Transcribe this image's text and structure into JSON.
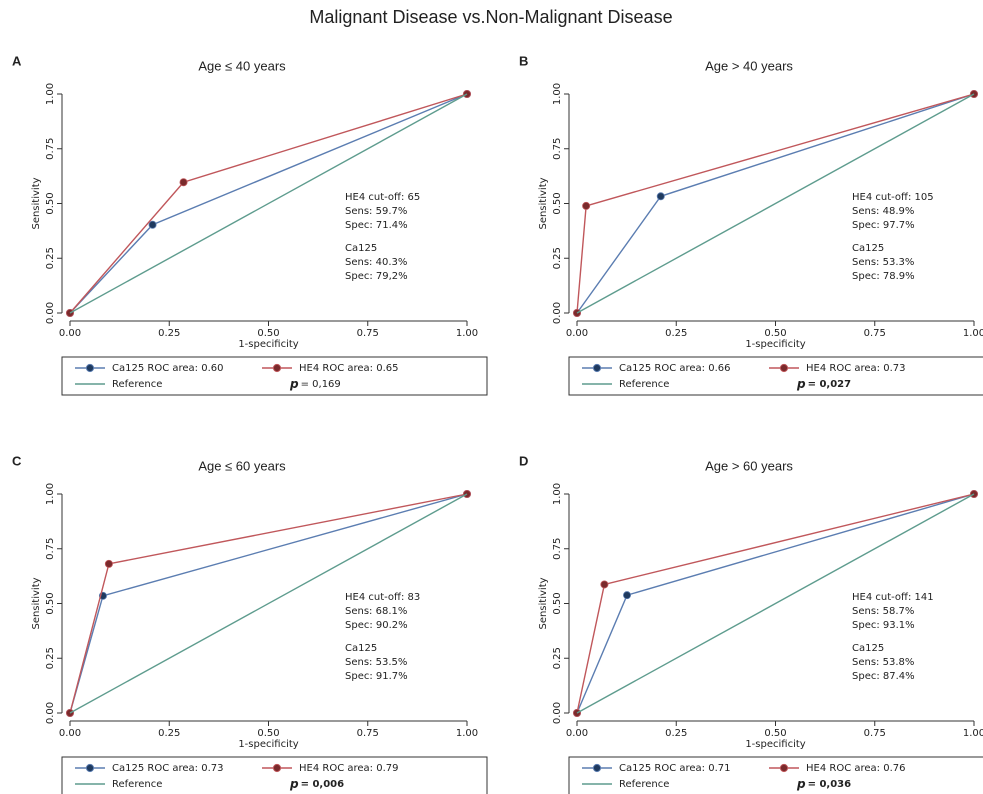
{
  "title": "Malignant Disease vs.Non-Malignant Disease",
  "chart_data": [
    {
      "type": "line",
      "panel": "A",
      "title": "Age ≤ 40 years",
      "xlabel": "1-specificity",
      "ylabel": "Sensitivity",
      "xlim": [
        0,
        1
      ],
      "ylim": [
        0,
        1
      ],
      "xticks": [
        {
          "value": 0,
          "label": "0.00"
        },
        {
          "value": 0.25,
          "label": "0.25"
        },
        {
          "value": 0.5,
          "label": "0.50"
        },
        {
          "value": 0.75,
          "label": "0.75"
        },
        {
          "value": 1,
          "label": "1.00"
        }
      ],
      "yticks": [
        {
          "value": 0,
          "label": "0.00"
        },
        {
          "value": 0.25,
          "label": "0.25"
        },
        {
          "value": 0.5,
          "label": "0.50"
        },
        {
          "value": 0.75,
          "label": "0.75"
        },
        {
          "value": 1,
          "label": "1.00"
        }
      ],
      "series": [
        {
          "name": "Ca125 ROC area: 0.60",
          "color": "#5b7db1",
          "marker_color": "#1f3a5f",
          "x": [
            0,
            0.208,
            1
          ],
          "values": [
            0,
            0.403,
            1
          ]
        },
        {
          "name": "HE4 ROC area: 0.65",
          "color": "#c0575b",
          "marker_color": "#7a2a2c",
          "x": [
            0,
            0.286,
            1
          ],
          "values": [
            0,
            0.597,
            1
          ]
        },
        {
          "name": "Reference",
          "color": "#5e9c8e",
          "x": [
            0,
            1
          ],
          "values": [
            0,
            1
          ]
        }
      ],
      "annotations": [
        [
          "HE4 cut-off: 65",
          "Sens: 59.7%",
          "Spec: 71.4%"
        ],
        [
          "Ca125",
          "Sens: 40.3%",
          "Spec: 79,2%"
        ]
      ],
      "p_symbol": "p",
      "p_text": "= 0,169",
      "p_bold": false
    },
    {
      "type": "line",
      "panel": "B",
      "title": "Age > 40 years",
      "xlabel": "1-specificity",
      "ylabel": "Sensitivity",
      "xlim": [
        0,
        1
      ],
      "ylim": [
        0,
        1
      ],
      "xticks": [
        {
          "value": 0,
          "label": "0.00"
        },
        {
          "value": 0.25,
          "label": "0.25"
        },
        {
          "value": 0.5,
          "label": "0.50"
        },
        {
          "value": 0.75,
          "label": "0.75"
        },
        {
          "value": 1,
          "label": "1.00"
        }
      ],
      "yticks": [
        {
          "value": 0,
          "label": "0.00"
        },
        {
          "value": 0.25,
          "label": "0.25"
        },
        {
          "value": 0.5,
          "label": "0.50"
        },
        {
          "value": 0.75,
          "label": "0.75"
        },
        {
          "value": 1,
          "label": "1.00"
        }
      ],
      "series": [
        {
          "name": "Ca125 ROC area: 0.66",
          "color": "#5b7db1",
          "marker_color": "#1f3a5f",
          "x": [
            0,
            0.211,
            1
          ],
          "values": [
            0,
            0.533,
            1
          ]
        },
        {
          "name": "HE4 ROC area: 0.73",
          "color": "#c0575b",
          "marker_color": "#7a2a2c",
          "x": [
            0,
            0.023,
            1
          ],
          "values": [
            0,
            0.489,
            1
          ]
        },
        {
          "name": "Reference",
          "color": "#5e9c8e",
          "x": [
            0,
            1
          ],
          "values": [
            0,
            1
          ]
        }
      ],
      "annotations": [
        [
          "HE4 cut-off: 105",
          "Sens: 48.9%",
          "Spec: 97.7%"
        ],
        [
          "Ca125",
          "Sens: 53.3%",
          "Spec: 78.9%"
        ]
      ],
      "p_symbol": "p",
      "p_text": "= 0,027",
      "p_bold": true
    },
    {
      "type": "line",
      "panel": "C",
      "title": "Age ≤ 60 years",
      "xlabel": "1-specificity",
      "ylabel": "Sensitivity",
      "xlim": [
        0,
        1
      ],
      "ylim": [
        0,
        1
      ],
      "xticks": [
        {
          "value": 0,
          "label": "0.00"
        },
        {
          "value": 0.25,
          "label": "0.25"
        },
        {
          "value": 0.5,
          "label": "0.50"
        },
        {
          "value": 0.75,
          "label": "0.75"
        },
        {
          "value": 1,
          "label": "1.00"
        }
      ],
      "yticks": [
        {
          "value": 0,
          "label": "0.00"
        },
        {
          "value": 0.25,
          "label": "0.25"
        },
        {
          "value": 0.5,
          "label": "0.50"
        },
        {
          "value": 0.75,
          "label": "0.75"
        },
        {
          "value": 1,
          "label": "1.00"
        }
      ],
      "series": [
        {
          "name": "Ca125 ROC area: 0.73",
          "color": "#5b7db1",
          "marker_color": "#1f3a5f",
          "x": [
            0,
            0.083,
            1
          ],
          "values": [
            0,
            0.535,
            1
          ]
        },
        {
          "name": "HE4 ROC area: 0.79",
          "color": "#c0575b",
          "marker_color": "#7a2a2c",
          "x": [
            0,
            0.098,
            1
          ],
          "values": [
            0,
            0.681,
            1
          ]
        },
        {
          "name": "Reference",
          "color": "#5e9c8e",
          "x": [
            0,
            1
          ],
          "values": [
            0,
            1
          ]
        }
      ],
      "annotations": [
        [
          "HE4 cut-off: 83",
          "Sens: 68.1%",
          "Spec: 90.2%"
        ],
        [
          "Ca125",
          "Sens: 53.5%",
          "Spec: 91.7%"
        ]
      ],
      "p_symbol": "p",
      "p_text": "= 0,006",
      "p_bold": true
    },
    {
      "type": "line",
      "panel": "D",
      "title": "Age > 60 years",
      "xlabel": "1-specificity",
      "ylabel": "Sensitivity",
      "xlim": [
        0,
        1
      ],
      "ylim": [
        0,
        1
      ],
      "xticks": [
        {
          "value": 0,
          "label": "0.00"
        },
        {
          "value": 0.25,
          "label": "0.25"
        },
        {
          "value": 0.5,
          "label": "0.50"
        },
        {
          "value": 0.75,
          "label": "0.75"
        },
        {
          "value": 1,
          "label": "1.00"
        }
      ],
      "yticks": [
        {
          "value": 0,
          "label": "0.00"
        },
        {
          "value": 0.25,
          "label": "0.25"
        },
        {
          "value": 0.5,
          "label": "0.50"
        },
        {
          "value": 0.75,
          "label": "0.75"
        },
        {
          "value": 1,
          "label": "1.00"
        }
      ],
      "series": [
        {
          "name": "Ca125 ROC area: 0.71",
          "color": "#5b7db1",
          "marker_color": "#1f3a5f",
          "x": [
            0,
            0.126,
            1
          ],
          "values": [
            0,
            0.538,
            1
          ]
        },
        {
          "name": "HE4 ROC area: 0.76",
          "color": "#c0575b",
          "marker_color": "#7a2a2c",
          "x": [
            0,
            0.069,
            1
          ],
          "values": [
            0,
            0.587,
            1
          ]
        },
        {
          "name": "Reference",
          "color": "#5e9c8e",
          "x": [
            0,
            1
          ],
          "values": [
            0,
            1
          ]
        }
      ],
      "annotations": [
        [
          "HE4 cut-off: 141",
          "Sens: 58.7%",
          "Spec: 93.1%"
        ],
        [
          "Ca125",
          "Sens: 53.8%",
          "Spec: 87.4%"
        ]
      ],
      "p_symbol": "p",
      "p_text": "= 0,036",
      "p_bold": true
    }
  ]
}
